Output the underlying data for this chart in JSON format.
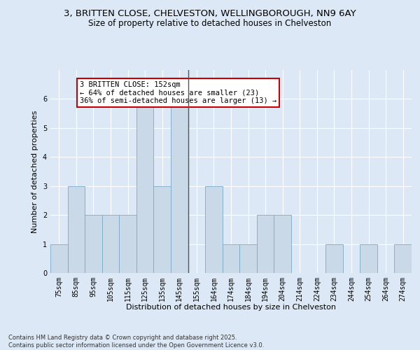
{
  "title1": "3, BRITTEN CLOSE, CHELVESTON, WELLINGBOROUGH, NN9 6AY",
  "title2": "Size of property relative to detached houses in Chelveston",
  "xlabel": "Distribution of detached houses by size in Chelveston",
  "ylabel": "Number of detached properties",
  "categories": [
    "75sqm",
    "85sqm",
    "95sqm",
    "105sqm",
    "115sqm",
    "125sqm",
    "135sqm",
    "145sqm",
    "155sqm",
    "164sqm",
    "174sqm",
    "184sqm",
    "194sqm",
    "204sqm",
    "214sqm",
    "224sqm",
    "234sqm",
    "244sqm",
    "254sqm",
    "264sqm",
    "274sqm"
  ],
  "values": [
    1,
    3,
    2,
    2,
    2,
    6,
    3,
    6,
    0,
    3,
    1,
    1,
    2,
    2,
    0,
    0,
    1,
    0,
    1,
    0,
    1
  ],
  "bar_color": "#c9d9e8",
  "bar_edge_color": "#7aaac8",
  "highlight_index": 7,
  "highlight_line_color": "#555555",
  "ylim": [
    0,
    7
  ],
  "yticks": [
    0,
    1,
    2,
    3,
    4,
    5,
    6
  ],
  "annotation_text": "3 BRITTEN CLOSE: 152sqm\n← 64% of detached houses are smaller (23)\n36% of semi-detached houses are larger (13) →",
  "annotation_box_color": "#ffffff",
  "annotation_border_color": "#cc0000",
  "footer_text": "Contains HM Land Registry data © Crown copyright and database right 2025.\nContains public sector information licensed under the Open Government Licence v3.0.",
  "background_color": "#dce8f5",
  "plot_background_color": "#dce8f5",
  "grid_color": "#ffffff",
  "title1_fontsize": 9.5,
  "title2_fontsize": 8.5,
  "xlabel_fontsize": 8,
  "ylabel_fontsize": 8,
  "tick_fontsize": 7,
  "footer_fontsize": 6,
  "annotation_fontsize": 7.5
}
